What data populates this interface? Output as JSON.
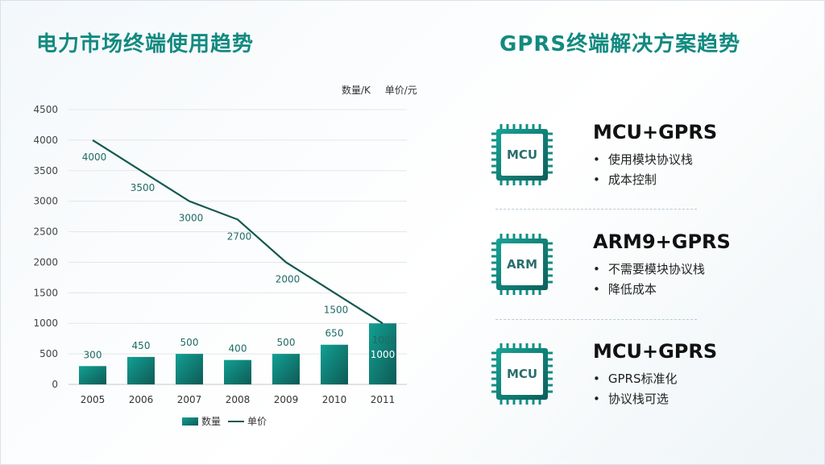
{
  "left_title": "电力市场终端使用趋势",
  "right_title": "GPRS终端解决方案趋势",
  "units": {
    "left": "数量/K",
    "right": "单价/元"
  },
  "chart_data": {
    "type": "bar+line",
    "categories": [
      "2005",
      "2006",
      "2007",
      "2008",
      "2009",
      "2010",
      "2011"
    ],
    "series": [
      {
        "name": "数量",
        "type": "bar",
        "values": [
          300,
          450,
          500,
          400,
          500,
          650,
          1000
        ]
      },
      {
        "name": "单价",
        "type": "line",
        "values": [
          4000,
          3500,
          3000,
          2700,
          2000,
          1500,
          1000
        ]
      }
    ],
    "y_ticks": [
      0,
      500,
      1000,
      1500,
      2000,
      2500,
      3000,
      3500,
      4000,
      4500
    ],
    "ylim": [
      0,
      4500
    ],
    "grid": true,
    "legend": "bottom",
    "colors": {
      "bar": "#138f86",
      "line": "#14584f",
      "label": "#1f6b66"
    }
  },
  "solutions": [
    {
      "chip": "MCU",
      "title": "MCU+GPRS",
      "points": [
        "使用模块协议栈",
        "成本控制"
      ]
    },
    {
      "chip": "ARM",
      "title": "ARM9+GPRS",
      "points": [
        "不需要模块协议栈",
        "降低成本"
      ]
    },
    {
      "chip": "MCU",
      "title": "MCU+GPRS",
      "points": [
        "GPRS标准化",
        "协议栈可选"
      ]
    }
  ]
}
